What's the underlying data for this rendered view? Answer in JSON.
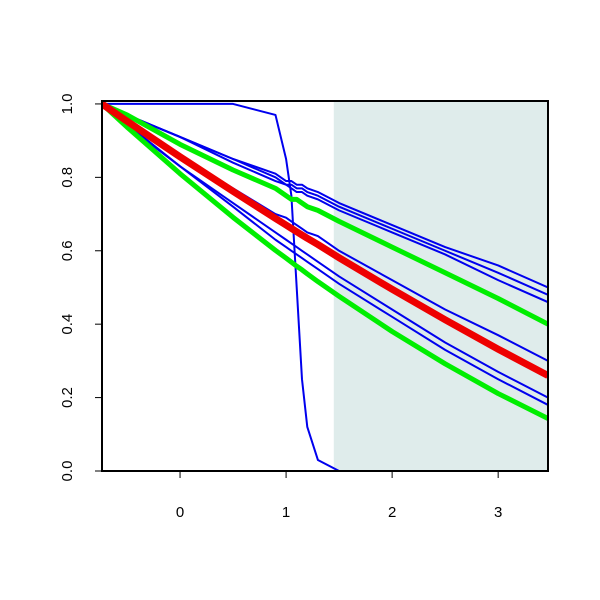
{
  "chart_data": {
    "type": "line",
    "x": [
      -0.736,
      -0.5,
      0,
      0.5,
      0.9,
      1.0,
      1.05,
      1.1,
      1.15,
      1.2,
      1.3,
      1.5,
      2,
      2.5,
      3,
      3.47
    ],
    "xlim": [
      -0.736,
      3.47
    ],
    "ylim": [
      0,
      1.008
    ],
    "xticks": [
      0,
      1,
      2,
      3
    ],
    "yticks": [
      {
        "value": 0,
        "label": "0.0"
      },
      {
        "value": 0.2,
        "label": "0.2"
      },
      {
        "value": 0.4,
        "label": "0.4"
      },
      {
        "value": 0.6,
        "label": "0.6"
      },
      {
        "value": 0.8,
        "label": "0.8"
      },
      {
        "value": 1,
        "label": "1.0"
      }
    ],
    "shaded_xrange": [
      1.45,
      3.47
    ],
    "shade_color": "#dfeceb",
    "series": [
      {
        "color": "#0000ee",
        "line_width": 2,
        "values": [
          1,
          1,
          1,
          1,
          0.97,
          0.85,
          0.75,
          0.5,
          0.25,
          0.12,
          0.03,
          0,
          0,
          0,
          0,
          0
        ]
      },
      {
        "color": "#0000ee",
        "line_width": 2,
        "values": [
          1,
          0.97,
          0.91,
          0.85,
          0.81,
          0.79,
          0.79,
          0.78,
          0.78,
          0.77,
          0.76,
          0.73,
          0.67,
          0.61,
          0.56,
          0.5
        ]
      },
      {
        "color": "#0000ee",
        "line_width": 2,
        "values": [
          1,
          0.97,
          0.91,
          0.85,
          0.8,
          0.78,
          0.78,
          0.77,
          0.77,
          0.76,
          0.75,
          0.72,
          0.66,
          0.6,
          0.54,
          0.48
        ]
      },
      {
        "color": "#0000ee",
        "line_width": 2,
        "values": [
          1,
          0.97,
          0.91,
          0.84,
          0.79,
          0.78,
          0.77,
          0.76,
          0.76,
          0.75,
          0.74,
          0.71,
          0.65,
          0.59,
          0.52,
          0.46
        ]
      },
      {
        "color": "#0000ee",
        "line_width": 2,
        "values": [
          1,
          0.96,
          0.86,
          0.77,
          0.7,
          0.69,
          0.68,
          0.67,
          0.66,
          0.65,
          0.64,
          0.6,
          0.52,
          0.44,
          0.37,
          0.3
        ]
      },
      {
        "color": "#0000ee",
        "line_width": 2,
        "values": [
          1,
          0.945,
          0.83,
          0.73,
          0.65,
          0.63,
          0.62,
          0.61,
          0.6,
          0.59,
          0.57,
          0.53,
          0.44,
          0.35,
          0.27,
          0.2
        ]
      },
      {
        "color": "#0000ee",
        "line_width": 2,
        "values": [
          1,
          0.94,
          0.83,
          0.72,
          0.63,
          0.61,
          0.6,
          0.59,
          0.58,
          0.57,
          0.55,
          0.51,
          0.42,
          0.33,
          0.25,
          0.18
        ]
      },
      {
        "color": "#00ee00",
        "line_width": 5,
        "values": [
          1,
          0.97,
          0.89,
          0.82,
          0.77,
          0.75,
          0.74,
          0.74,
          0.73,
          0.72,
          0.71,
          0.68,
          0.61,
          0.54,
          0.47,
          0.4
        ]
      },
      {
        "color": "#00ee00",
        "line_width": 5,
        "values": [
          1,
          0.937,
          0.81,
          0.691,
          0.601,
          0.58,
          0.569,
          0.558,
          0.548,
          0.537,
          0.516,
          0.476,
          0.38,
          0.292,
          0.211,
          0.143
        ]
      },
      {
        "color": "#ee0000",
        "line_width": 7,
        "values": [
          1,
          0.953,
          0.856,
          0.762,
          0.688,
          0.67,
          0.661,
          0.652,
          0.643,
          0.634,
          0.617,
          0.581,
          0.495,
          0.412,
          0.332,
          0.26
        ]
      }
    ]
  }
}
